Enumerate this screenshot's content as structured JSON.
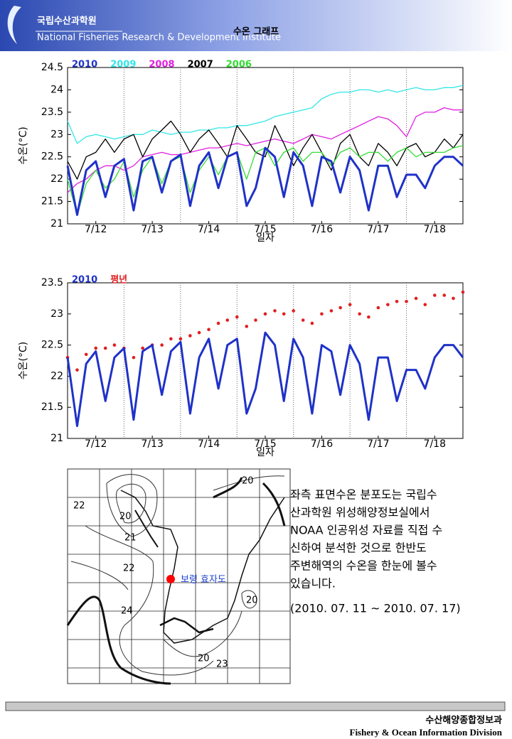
{
  "header": {
    "org_name": "국립수산과학원",
    "org_name_en": "National Fisheries Research & Development Institute",
    "title": "수온 그래프"
  },
  "chart_data": [
    {
      "type": "line",
      "ylabel": "수온(°C)",
      "xlabel": "일자",
      "xlim": [
        12,
        19
      ],
      "ylim": [
        21,
        24.5
      ],
      "yticks": [
        21,
        21.5,
        22,
        22.5,
        23,
        23.5,
        24,
        24.5
      ],
      "xticks": [
        {
          "value": 12.5,
          "label": "7/12"
        },
        {
          "value": 13.5,
          "label": "7/13"
        },
        {
          "value": 14.5,
          "label": "7/14"
        },
        {
          "value": 15.5,
          "label": "7/15"
        },
        {
          "value": 16.5,
          "label": "7/16"
        },
        {
          "value": 17.5,
          "label": "7/17"
        },
        {
          "value": 18.5,
          "label": "7/18"
        }
      ],
      "xgrid": [
        13,
        14,
        15,
        16,
        17,
        18
      ],
      "x": [
        12,
        12.17,
        12.33,
        12.5,
        12.67,
        12.83,
        13,
        13.17,
        13.33,
        13.5,
        13.67,
        13.83,
        14,
        14.17,
        14.33,
        14.5,
        14.67,
        14.83,
        15,
        15.17,
        15.33,
        15.5,
        15.67,
        15.83,
        16,
        16.17,
        16.33,
        16.5,
        16.67,
        16.83,
        17,
        17.17,
        17.33,
        17.5,
        17.67,
        17.83,
        18,
        18.17,
        18.33,
        18.5,
        18.67,
        18.83,
        19
      ],
      "series": [
        {
          "name": "2009",
          "color": "#33e6e6",
          "line_width": 1.3,
          "values": [
            23.3,
            22.8,
            22.95,
            23.0,
            22.95,
            22.9,
            22.95,
            23.0,
            23.0,
            23.1,
            23.05,
            23.0,
            23.05,
            23.05,
            23.1,
            23.1,
            23.15,
            23.15,
            23.2,
            23.2,
            23.25,
            23.3,
            23.4,
            23.45,
            23.5,
            23.55,
            23.6,
            23.8,
            23.9,
            23.95,
            23.95,
            24.0,
            24.0,
            23.95,
            24.0,
            23.95,
            24.0,
            24.05,
            24.0,
            24.0,
            24.05,
            24.05,
            24.1
          ]
        },
        {
          "name": "2008",
          "color": "#e020e0",
          "line_width": 1.3,
          "values": [
            21.7,
            21.9,
            22.0,
            22.2,
            22.3,
            22.3,
            22.2,
            22.3,
            22.5,
            22.55,
            22.6,
            22.55,
            22.55,
            22.6,
            22.65,
            22.7,
            22.7,
            22.75,
            22.8,
            22.75,
            22.8,
            22.85,
            22.9,
            22.85,
            22.8,
            22.9,
            23.0,
            22.95,
            22.9,
            23.0,
            23.1,
            23.2,
            23.3,
            23.4,
            23.35,
            23.2,
            22.95,
            23.4,
            23.5,
            23.5,
            23.6,
            23.55,
            23.55
          ]
        },
        {
          "name": "2007",
          "color": "#000000",
          "line_width": 1.3,
          "values": [
            22.4,
            22.0,
            22.5,
            22.6,
            22.9,
            22.6,
            22.9,
            23.0,
            22.5,
            22.9,
            23.1,
            23.3,
            23.0,
            22.6,
            22.9,
            23.1,
            22.8,
            22.5,
            23.2,
            22.9,
            22.6,
            22.5,
            23.2,
            22.8,
            22.3,
            22.7,
            23.0,
            22.6,
            22.2,
            22.8,
            23.0,
            22.5,
            22.3,
            22.8,
            22.6,
            22.3,
            22.7,
            22.8,
            22.5,
            22.6,
            22.9,
            22.7,
            23.0
          ]
        },
        {
          "name": "2006",
          "color": "#33dd33",
          "line_width": 1.3,
          "values": [
            22.0,
            21.2,
            21.9,
            22.2,
            21.8,
            22.0,
            22.4,
            21.6,
            22.2,
            22.5,
            21.9,
            22.4,
            22.5,
            21.7,
            22.2,
            22.5,
            22.1,
            22.5,
            22.6,
            22.0,
            22.6,
            22.7,
            22.3,
            22.6,
            22.7,
            22.4,
            22.6,
            22.6,
            22.3,
            22.6,
            22.7,
            22.5,
            22.6,
            22.6,
            22.4,
            22.6,
            22.7,
            22.5,
            22.6,
            22.6,
            22.6,
            22.7,
            22.75
          ]
        },
        {
          "name": "2010",
          "color": "#1f32c8",
          "line_width": 3,
          "values": [
            22.3,
            21.2,
            22.2,
            22.4,
            21.6,
            22.3,
            22.45,
            21.3,
            22.4,
            22.5,
            21.7,
            22.4,
            22.55,
            21.4,
            22.3,
            22.6,
            21.8,
            22.5,
            22.6,
            21.4,
            21.8,
            22.7,
            22.5,
            21.6,
            22.6,
            22.3,
            21.4,
            22.5,
            22.4,
            21.7,
            22.5,
            22.2,
            21.3,
            22.3,
            22.3,
            21.6,
            22.1,
            22.1,
            21.8,
            22.3,
            22.5,
            22.5,
            22.3
          ]
        }
      ],
      "legend_order": [
        4,
        0,
        1,
        2,
        3
      ]
    },
    {
      "type": "line",
      "ylabel": "수온(°C)",
      "xlabel": "일자",
      "xlim": [
        12,
        19
      ],
      "ylim": [
        21,
        23.5
      ],
      "yticks": [
        21,
        21.5,
        22,
        22.5,
        23,
        23.5
      ],
      "xticks": [
        {
          "value": 12.5,
          "label": "7/12"
        },
        {
          "value": 13.5,
          "label": "7/13"
        },
        {
          "value": 14.5,
          "label": "7/14"
        },
        {
          "value": 15.5,
          "label": "7/15"
        },
        {
          "value": 16.5,
          "label": "7/16"
        },
        {
          "value": 17.5,
          "label": "7/17"
        },
        {
          "value": 18.5,
          "label": "7/18"
        }
      ],
      "xgrid": [
        13,
        14,
        15,
        16,
        17,
        18
      ],
      "x": [
        12,
        12.17,
        12.33,
        12.5,
        12.67,
        12.83,
        13,
        13.17,
        13.33,
        13.5,
        13.67,
        13.83,
        14,
        14.17,
        14.33,
        14.5,
        14.67,
        14.83,
        15,
        15.17,
        15.33,
        15.5,
        15.67,
        15.83,
        16,
        16.17,
        16.33,
        16.5,
        16.67,
        16.83,
        17,
        17.17,
        17.33,
        17.5,
        17.67,
        17.83,
        18,
        18.17,
        18.33,
        18.5,
        18.67,
        18.83,
        19
      ],
      "series": [
        {
          "name": "평년",
          "color": "#e02020",
          "marker": "dots",
          "values": [
            22.3,
            22.1,
            22.35,
            22.45,
            22.45,
            22.5,
            22.45,
            22.3,
            22.45,
            22.5,
            22.5,
            22.6,
            22.6,
            22.65,
            22.7,
            22.75,
            22.85,
            22.9,
            22.95,
            22.8,
            22.9,
            23.0,
            23.05,
            23.0,
            23.05,
            22.9,
            22.85,
            23.0,
            23.05,
            23.1,
            23.15,
            23.0,
            22.95,
            23.1,
            23.15,
            23.2,
            23.2,
            23.25,
            23.15,
            23.3,
            23.3,
            23.25,
            23.35
          ]
        },
        {
          "name": "2010",
          "color": "#1f32c8",
          "line_width": 3,
          "values": [
            22.3,
            21.2,
            22.2,
            22.4,
            21.6,
            22.3,
            22.45,
            21.3,
            22.4,
            22.5,
            21.7,
            22.4,
            22.55,
            21.4,
            22.3,
            22.6,
            21.8,
            22.5,
            22.6,
            21.4,
            21.8,
            22.7,
            22.5,
            21.6,
            22.6,
            22.3,
            21.4,
            22.5,
            22.4,
            21.7,
            22.5,
            22.2,
            21.3,
            22.3,
            22.3,
            21.6,
            22.1,
            22.1,
            21.8,
            22.3,
            22.5,
            22.5,
            22.3
          ]
        }
      ],
      "legend_order": [
        1,
        0
      ]
    }
  ],
  "map": {
    "contour_labels": [
      "20",
      "20",
      "21",
      "22",
      "22",
      "24",
      "20",
      "20",
      "23"
    ],
    "station": "보령 효자도"
  },
  "description": {
    "lines": [
      "좌측 표면수온 분포도는 국립수",
      "산과학원 위성해양정보실에서",
      "NOAA 인공위성 자료를 직접 수",
      "신하여 분석한 것으로  한반도",
      "주변해역의 수온을 한눈에 볼수",
      "있습니다."
    ],
    "period": "(2010. 07. 11 ~ 2010. 07. 17)"
  },
  "footer": {
    "division": "수산해양종합정보과",
    "division_en": "Fishery & Ocean Information Division"
  }
}
